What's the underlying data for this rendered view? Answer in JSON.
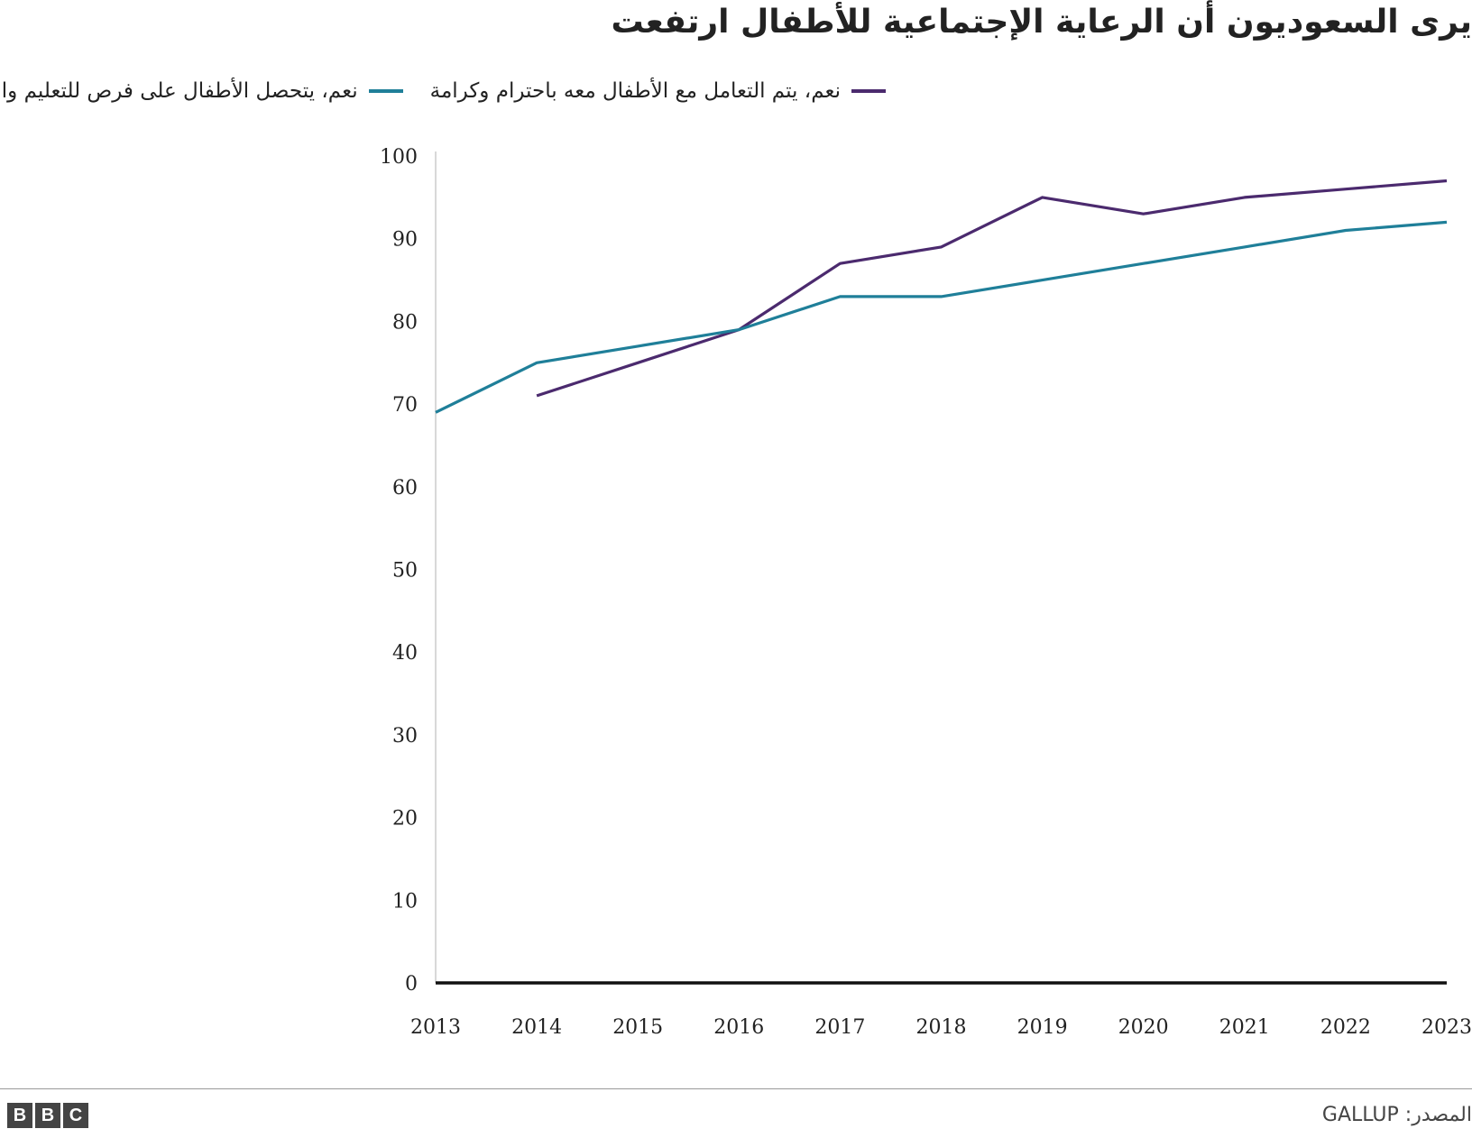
{
  "title": "يرى السعوديون أن الرعاية الإجتماعية للأطفال ارتفعت",
  "legend": [
    {
      "label": "نعم، يتم التعامل مع الأطفال معه باحترام وكرامة",
      "color": "#4b2a6e"
    },
    {
      "label": "نعم، يتحصل الأطفال على فرص للتعليم والتطور",
      "color": "#1f7f99"
    }
  ],
  "source": "المصدر: GALLUP",
  "logo": [
    "B",
    "B",
    "C"
  ],
  "chart_data": {
    "type": "line",
    "x": [
      2013,
      2014,
      2015,
      2016,
      2017,
      2018,
      2019,
      2020,
      2021,
      2022,
      2023
    ],
    "xticks": [
      "2013",
      "2014",
      "2015",
      "2016",
      "2017",
      "2018",
      "2019",
      "2020",
      "2021",
      "2022",
      "2023"
    ],
    "yticks": [
      "0",
      "10",
      "20",
      "30",
      "40",
      "50",
      "60",
      "70",
      "80",
      "90",
      "100"
    ],
    "ylim": [
      0,
      100
    ],
    "grid": false,
    "legend_position": "top",
    "series": [
      {
        "name": "نعم، يتم التعامل مع الأطفال معه باحترام وكرامة",
        "color": "#4b2a6e",
        "values": [
          null,
          71,
          75,
          79,
          87,
          89,
          95,
          93,
          95,
          96,
          97
        ]
      },
      {
        "name": "نعم، يتحصل الأطفال على فرص للتعليم والتطور",
        "color": "#1f7f99",
        "values": [
          69,
          75,
          77,
          79,
          83,
          83,
          85,
          87,
          89,
          91,
          92
        ]
      }
    ]
  }
}
